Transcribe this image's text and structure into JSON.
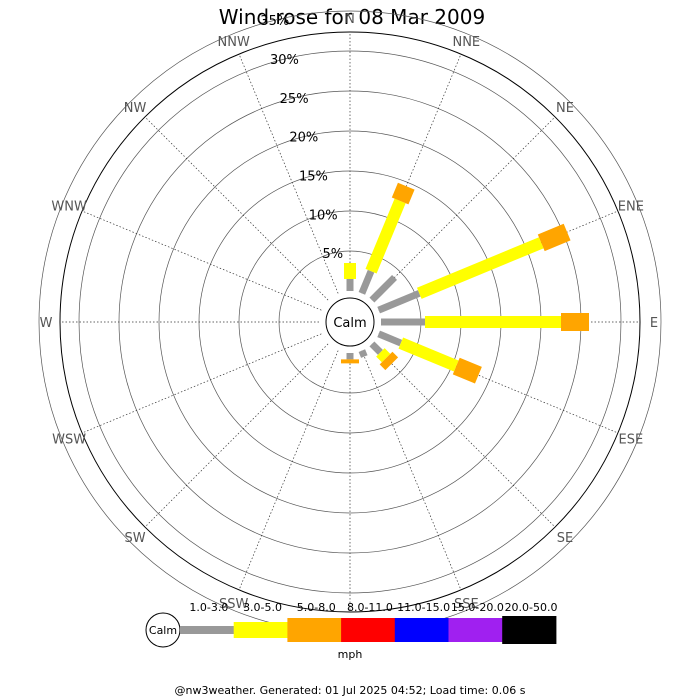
{
  "title": "Wind rose for 08 Mar 2009",
  "footer": "@nw3weather. Generated: 01 Jul 2025 04:52; Load time: 0.06 s",
  "calm_label": "Calm",
  "legend": {
    "calm_label": "Calm",
    "unit": "mph",
    "bins": [
      {
        "label": "1.0-3.0",
        "color": "#999999"
      },
      {
        "label": "3.0-5.0",
        "color": "#ffff00"
      },
      {
        "label": "5.0-8.0",
        "color": "#ffa500"
      },
      {
        "label": "8.0-11.0",
        "color": "#ff0000"
      },
      {
        "label": "11.0-15.0",
        "color": "#0000ff"
      },
      {
        "label": "15.0-20.0",
        "color": "#a020f0"
      },
      {
        "label": "20.0-50.0",
        "color": "#000000"
      }
    ]
  },
  "chart_data": {
    "type": "wind-rose",
    "title": "Wind rose for 08 Mar 2009",
    "directions": [
      "N",
      "NNE",
      "NE",
      "ENE",
      "E",
      "ESE",
      "SE",
      "SSE",
      "S",
      "SSW",
      "SW",
      "WSW",
      "W",
      "WNW",
      "NW",
      "NNW"
    ],
    "rings": [
      "5%",
      "10%",
      "15%",
      "20%",
      "25%",
      "30%",
      "35%"
    ],
    "rlim": [
      0,
      35
    ],
    "grid": true,
    "legend_position": "bottom",
    "series": [
      {
        "name": "1.0-3.0",
        "values": [
          1.5,
          3.0,
          4.0,
          5.5,
          5.5,
          3.0,
          1.5,
          0.8,
          0.8,
          0,
          0,
          0,
          0,
          0,
          0,
          0
        ]
      },
      {
        "name": "3.0-5.0",
        "values": [
          2.0,
          9.5,
          0,
          16.5,
          17.0,
          7.5,
          1.0,
          0,
          0,
          0,
          0,
          0,
          0,
          0,
          0,
          0
        ]
      },
      {
        "name": "5.0-8.0",
        "values": [
          0,
          2.0,
          0,
          3.5,
          3.5,
          3.0,
          1.0,
          0,
          0.5,
          0,
          0,
          0,
          0,
          0,
          0,
          0
        ]
      },
      {
        "name": "8.0-11.0",
        "values": [
          0,
          0,
          0,
          0,
          0,
          0,
          0,
          0,
          0,
          0,
          0,
          0,
          0,
          0,
          0,
          0
        ]
      },
      {
        "name": "11.0-15.0",
        "values": [
          0,
          0,
          0,
          0,
          0,
          0,
          0,
          0,
          0,
          0,
          0,
          0,
          0,
          0,
          0,
          0
        ]
      },
      {
        "name": "15.0-20.0",
        "values": [
          0,
          0,
          0,
          0,
          0,
          0,
          0,
          0,
          0,
          0,
          0,
          0,
          0,
          0,
          0,
          0
        ]
      },
      {
        "name": "20.0-50.0",
        "values": [
          0,
          0,
          0,
          0,
          0,
          0,
          0,
          0,
          0,
          0,
          0,
          0,
          0,
          0,
          0,
          0
        ]
      }
    ]
  }
}
